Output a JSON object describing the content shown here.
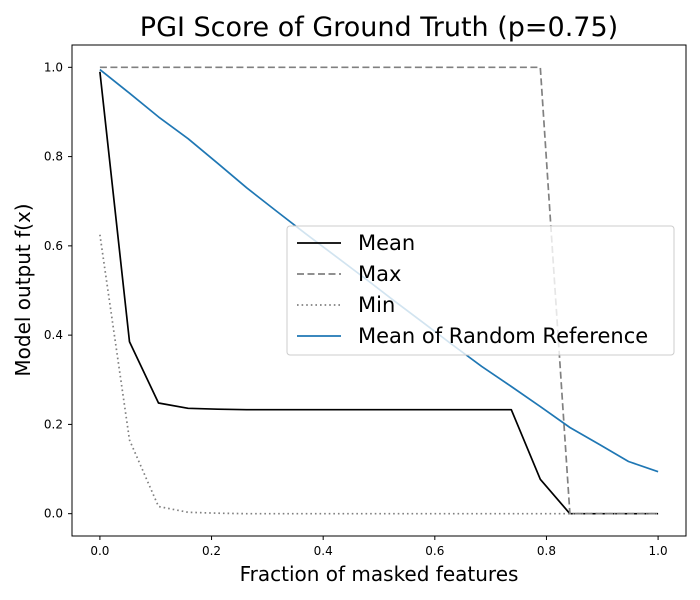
{
  "chart_data": {
    "type": "line",
    "title": "PGI Score of Ground Truth (p=0.75)",
    "xlabel": "Fraction of masked features",
    "ylabel": "Model output f(x)",
    "xlim": [
      -0.05,
      1.05
    ],
    "ylim": [
      -0.05,
      1.05
    ],
    "xticks": [
      0.0,
      0.2,
      0.4,
      0.6,
      0.8,
      1.0
    ],
    "yticks": [
      0.0,
      0.2,
      0.4,
      0.6,
      0.8,
      1.0
    ],
    "xtick_labels": [
      "0.0",
      "0.2",
      "0.4",
      "0.6",
      "0.8",
      "1.0"
    ],
    "ytick_labels": [
      "0.0",
      "0.2",
      "0.4",
      "0.6",
      "0.8",
      "1.0"
    ],
    "grid": false,
    "legend_position": "center-right",
    "series": [
      {
        "name": "Mean",
        "color": "#000000",
        "style": "solid",
        "x": [
          0.0,
          0.053,
          0.105,
          0.158,
          0.211,
          0.263,
          0.316,
          0.368,
          0.421,
          0.474,
          0.526,
          0.579,
          0.632,
          0.684,
          0.737,
          0.789,
          0.842,
          0.895,
          0.947,
          1.0
        ],
        "y": [
          0.99,
          0.385,
          0.248,
          0.236,
          0.234,
          0.233,
          0.233,
          0.233,
          0.233,
          0.233,
          0.233,
          0.233,
          0.233,
          0.233,
          0.233,
          0.077,
          0.0,
          0.0,
          0.0,
          0.0
        ]
      },
      {
        "name": "Max",
        "color": "#808080",
        "style": "dashed",
        "x": [
          0.0,
          0.053,
          0.105,
          0.158,
          0.211,
          0.263,
          0.316,
          0.368,
          0.421,
          0.474,
          0.526,
          0.579,
          0.632,
          0.684,
          0.737,
          0.789,
          0.842,
          0.895,
          0.947,
          1.0
        ],
        "y": [
          1.0,
          1.0,
          1.0,
          1.0,
          1.0,
          1.0,
          1.0,
          1.0,
          1.0,
          1.0,
          1.0,
          1.0,
          1.0,
          1.0,
          1.0,
          1.0,
          0.0,
          0.0,
          0.0,
          0.0
        ]
      },
      {
        "name": "Min",
        "color": "#808080",
        "style": "dotted",
        "x": [
          0.0,
          0.053,
          0.105,
          0.158,
          0.211,
          0.263,
          0.316,
          0.368,
          0.421,
          0.474,
          0.526,
          0.579,
          0.632,
          0.684,
          0.737,
          0.789,
          0.842,
          0.895,
          0.947,
          1.0
        ],
        "y": [
          0.625,
          0.165,
          0.016,
          0.003,
          0.001,
          0.0,
          0.0,
          0.0,
          0.0,
          0.0,
          0.0,
          0.0,
          0.0,
          0.0,
          0.0,
          0.0,
          0.0,
          0.0,
          0.0,
          0.0
        ]
      },
      {
        "name": "Mean of Random Reference",
        "color": "#1f77b4",
        "style": "solid",
        "x": [
          0.0,
          0.053,
          0.105,
          0.158,
          0.211,
          0.263,
          0.316,
          0.368,
          0.421,
          0.474,
          0.526,
          0.579,
          0.632,
          0.684,
          0.737,
          0.789,
          0.842,
          0.895,
          0.947,
          1.0
        ],
        "y": [
          0.995,
          0.942,
          0.889,
          0.84,
          0.785,
          0.73,
          0.678,
          0.628,
          0.578,
          0.528,
          0.478,
          0.428,
          0.378,
          0.33,
          0.285,
          0.24,
          0.193,
          0.155,
          0.117,
          0.094
        ]
      }
    ]
  }
}
